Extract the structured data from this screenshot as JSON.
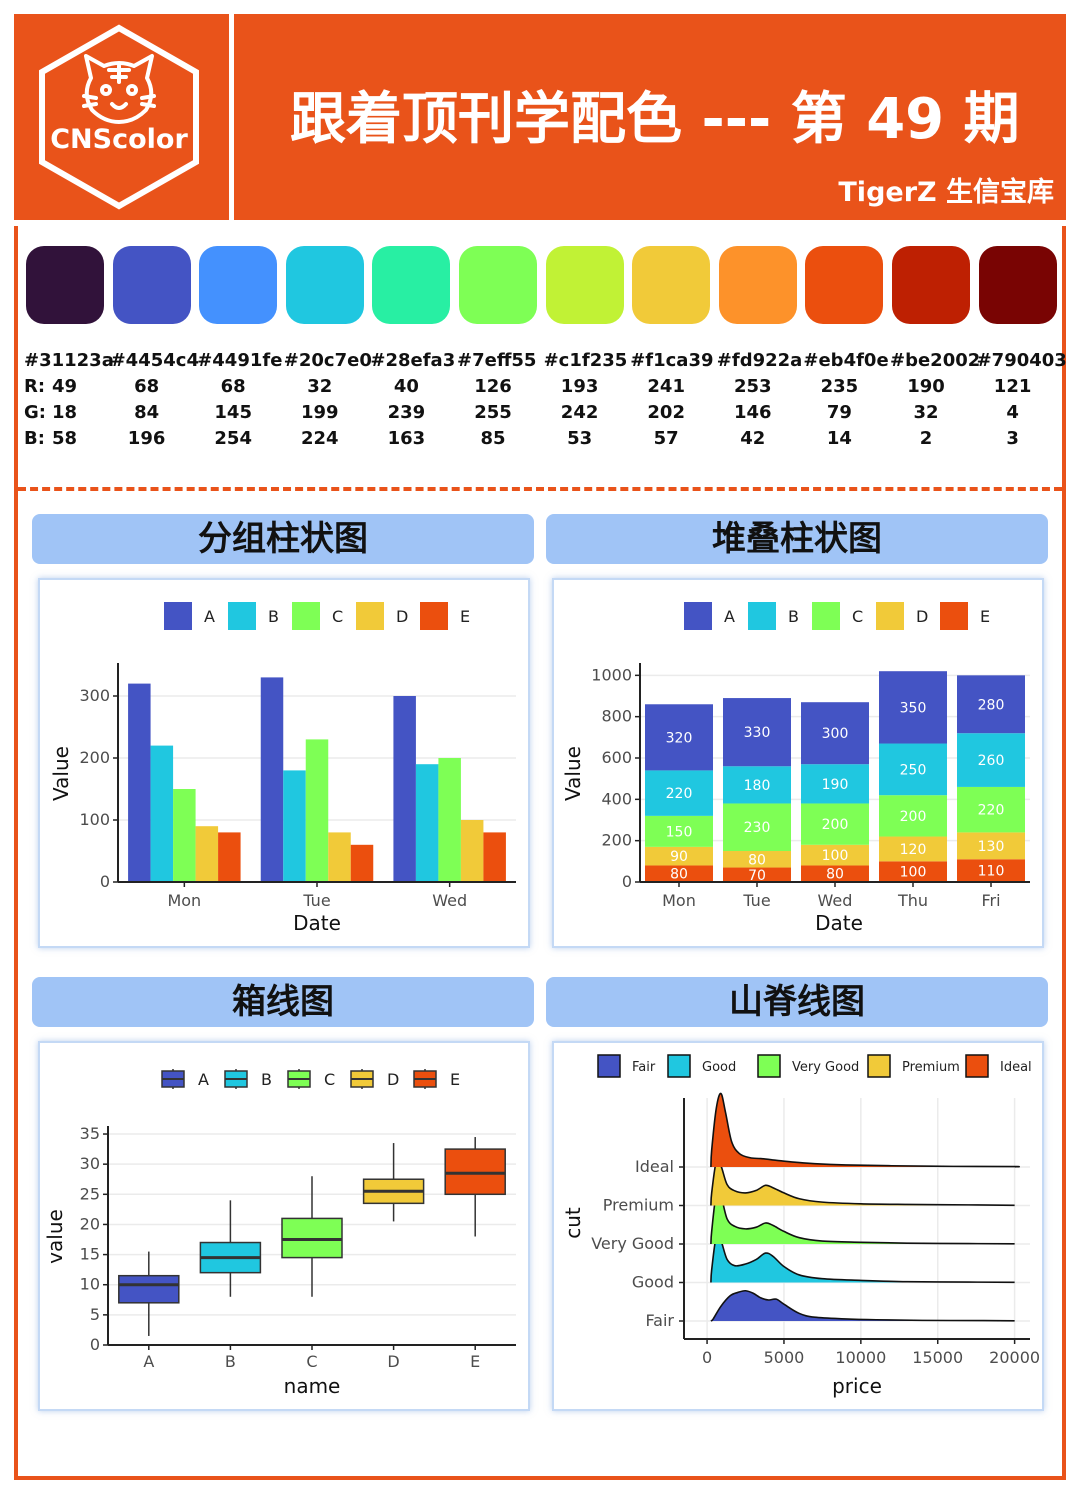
{
  "header": {
    "logo_text": "CNScolor",
    "title": "跟着顶刊学配色 --- 第 49 期",
    "subtitle": "TigerZ 生信宝库"
  },
  "palette": [
    {
      "hex": "#31123a",
      "r": "49",
      "g": "18",
      "b": "58"
    },
    {
      "hex": "#4454c4",
      "r": "68",
      "g": "84",
      "b": "196"
    },
    {
      "hex": "#4491fe",
      "r": "68",
      "g": "145",
      "b": "254"
    },
    {
      "hex": "#20c7e0",
      "r": "32",
      "g": "199",
      "b": "224"
    },
    {
      "hex": "#28efa3",
      "r": "40",
      "g": "239",
      "b": "163"
    },
    {
      "hex": "#7eff55",
      "r": "126",
      "g": "255",
      "b": "85"
    },
    {
      "hex": "#c1f235",
      "r": "193",
      "g": "242",
      "b": "53"
    },
    {
      "hex": "#f1ca39",
      "r": "241",
      "g": "202",
      "b": "57"
    },
    {
      "hex": "#fd922a",
      "r": "253",
      "g": "146",
      "b": "42"
    },
    {
      "hex": "#eb4f0e",
      "r": "235",
      "g": "79",
      "b": "14"
    },
    {
      "hex": "#be2002",
      "r": "190",
      "g": "32",
      "b": "2"
    },
    {
      "hex": "#790403",
      "r": "121",
      "g": "4",
      "b": "3"
    }
  ],
  "rgb_labels": {
    "r": "R:",
    "g": "G:",
    "b": "B:"
  },
  "panels": {
    "grouped": "分组柱状图",
    "stacked": "堆叠柱状图",
    "box": "箱线图",
    "ridge": "山脊线图"
  },
  "chart_data": [
    {
      "type": "bar",
      "title": "分组柱状图",
      "xlabel": "Date",
      "ylabel": "Value",
      "categories": [
        "Mon",
        "Tue",
        "Wed"
      ],
      "ylim": [
        0,
        350
      ],
      "yticks": [
        0,
        100,
        200,
        300
      ],
      "legend": "top",
      "grid": true,
      "series": [
        {
          "name": "A",
          "color": "#4454c4",
          "values": [
            320,
            330,
            300
          ]
        },
        {
          "name": "B",
          "color": "#20c7e0",
          "values": [
            220,
            180,
            190
          ]
        },
        {
          "name": "C",
          "color": "#7eff55",
          "values": [
            150,
            230,
            200
          ]
        },
        {
          "name": "D",
          "color": "#f1ca39",
          "values": [
            90,
            80,
            100
          ]
        },
        {
          "name": "E",
          "color": "#eb4f0e",
          "values": [
            80,
            60,
            80
          ]
        }
      ]
    },
    {
      "type": "bar",
      "stacked": true,
      "title": "堆叠柱状图",
      "xlabel": "Date",
      "ylabel": "Value",
      "categories": [
        "Mon",
        "Tue",
        "Wed",
        "Thu",
        "Fri"
      ],
      "ylim": [
        0,
        1050
      ],
      "yticks": [
        0,
        200,
        400,
        600,
        800,
        1000
      ],
      "legend": "top",
      "grid": true,
      "series": [
        {
          "name": "E",
          "color": "#eb4f0e",
          "values": [
            80,
            70,
            80,
            100,
            110
          ]
        },
        {
          "name": "D",
          "color": "#f1ca39",
          "values": [
            90,
            80,
            100,
            120,
            130
          ]
        },
        {
          "name": "C",
          "color": "#7eff55",
          "values": [
            150,
            230,
            200,
            200,
            220
          ]
        },
        {
          "name": "B",
          "color": "#20c7e0",
          "values": [
            220,
            180,
            190,
            250,
            260
          ]
        },
        {
          "name": "A",
          "color": "#4454c4",
          "values": [
            320,
            330,
            300,
            350,
            280
          ]
        }
      ],
      "legend_order": [
        "A",
        "B",
        "C",
        "D",
        "E"
      ]
    },
    {
      "type": "box",
      "title": "箱线图",
      "xlabel": "name",
      "ylabel": "value",
      "categories": [
        "A",
        "B",
        "C",
        "D",
        "E"
      ],
      "ylim": [
        0,
        36
      ],
      "yticks": [
        0,
        5,
        10,
        15,
        20,
        25,
        30,
        35
      ],
      "legend": "top",
      "grid": true,
      "boxes": [
        {
          "name": "A",
          "color": "#4454c4",
          "min": 1.5,
          "q1": 7,
          "median": 10,
          "q3": 11.5,
          "max": 15.5
        },
        {
          "name": "B",
          "color": "#20c7e0",
          "min": 8,
          "q1": 12,
          "median": 14.5,
          "q3": 17,
          "max": 24
        },
        {
          "name": "C",
          "color": "#7eff55",
          "min": 8,
          "q1": 14.5,
          "median": 17.5,
          "q3": 21,
          "max": 28
        },
        {
          "name": "D",
          "color": "#f1ca39",
          "min": 20.5,
          "q1": 23.5,
          "median": 25.5,
          "q3": 27.5,
          "max": 33.5
        },
        {
          "name": "E",
          "color": "#eb4f0e",
          "min": 18,
          "q1": 25,
          "median": 28.5,
          "q3": 32.5,
          "max": 34.5
        }
      ]
    },
    {
      "type": "area",
      "subtype": "ridgeline",
      "title": "山脊线图",
      "xlabel": "price",
      "ylabel": "cut",
      "xlim": [
        -1500,
        21000
      ],
      "xticks": [
        0,
        5000,
        10000,
        15000,
        20000
      ],
      "legend": "top",
      "grid": true,
      "series": [
        {
          "name": "Fair",
          "color": "#4454c4",
          "x": [
            400,
            900,
            1500,
            2000,
            2500,
            3000,
            3500,
            4000,
            4500,
            5000,
            6000,
            7000,
            9000,
            11000,
            14000,
            18000
          ],
          "density": [
            0.05,
            0.35,
            0.6,
            0.68,
            0.72,
            0.66,
            0.55,
            0.5,
            0.52,
            0.4,
            0.18,
            0.09,
            0.05,
            0.03,
            0.015,
            0.01
          ]
        },
        {
          "name": "Good",
          "color": "#20c7e0",
          "x": [
            300,
            600,
            900,
            1300,
            1800,
            2500,
            3200,
            3800,
            4300,
            5000,
            6000,
            7500,
            10000,
            13000,
            17000
          ],
          "density": [
            0.3,
            1.1,
            1.0,
            0.55,
            0.4,
            0.44,
            0.55,
            0.7,
            0.62,
            0.38,
            0.18,
            0.09,
            0.05,
            0.02,
            0.01
          ]
        },
        {
          "name": "Very Good",
          "color": "#7eff55",
          "x": [
            300,
            600,
            900,
            1300,
            1800,
            2500,
            3200,
            3800,
            4300,
            5000,
            6000,
            7500,
            10000,
            13000,
            17000
          ],
          "density": [
            0.3,
            1.2,
            1.15,
            0.6,
            0.42,
            0.36,
            0.4,
            0.5,
            0.44,
            0.3,
            0.15,
            0.07,
            0.04,
            0.02,
            0.01
          ]
        },
        {
          "name": "Premium",
          "color": "#f1ca39",
          "x": [
            300,
            600,
            900,
            1300,
            1800,
            2500,
            3200,
            3800,
            4300,
            5000,
            6000,
            7500,
            10000,
            13000,
            17000
          ],
          "density": [
            0.3,
            1.05,
            0.95,
            0.5,
            0.35,
            0.3,
            0.36,
            0.48,
            0.42,
            0.3,
            0.16,
            0.08,
            0.04,
            0.025,
            0.015
          ]
        },
        {
          "name": "Ideal",
          "color": "#eb4f0e",
          "x": [
            300,
            600,
            900,
            1200,
            1600,
            2100,
            2800,
            3500,
            4500,
            5500,
            7000,
            9000,
            12000,
            16000,
            20000
          ],
          "density": [
            0.4,
            1.4,
            1.75,
            1.3,
            0.6,
            0.32,
            0.22,
            0.2,
            0.16,
            0.12,
            0.08,
            0.05,
            0.03,
            0.015,
            0.01
          ]
        }
      ],
      "legend_order": [
        "Fair",
        "Good",
        "Very Good",
        "Premium",
        "Ideal"
      ]
    }
  ]
}
